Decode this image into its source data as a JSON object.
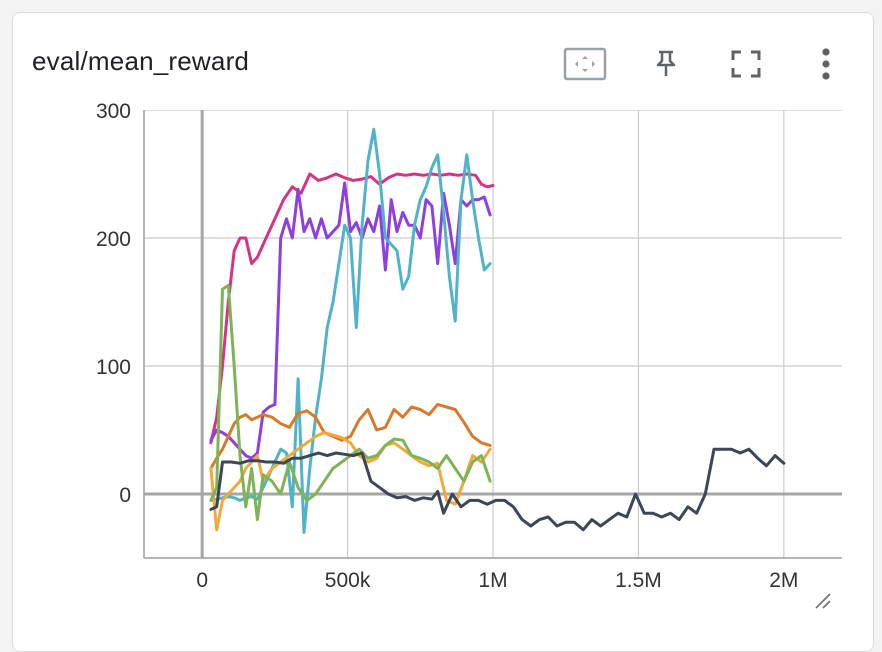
{
  "card": {
    "title": "eval/mean_reward",
    "toolbar": [
      {
        "name": "fit-domain-icon"
      },
      {
        "name": "pin-icon"
      },
      {
        "name": "fullscreen-icon"
      },
      {
        "name": "more-vert-icon"
      }
    ],
    "resize_icon": "resize-handle-icon"
  },
  "colors": {
    "axis": "#9e9e9e",
    "grid": "#cccccc",
    "tick_text": "#333333"
  },
  "chart_data": {
    "type": "line",
    "title": "eval/mean_reward",
    "xlabel": "",
    "ylabel": "",
    "xlim": [
      -200000,
      2200000
    ],
    "ylim": [
      -50,
      300
    ],
    "x_ticks": [
      {
        "value": 0,
        "label": "0"
      },
      {
        "value": 500000,
        "label": "500k"
      },
      {
        "value": 1000000,
        "label": "1M"
      },
      {
        "value": 1500000,
        "label": "1.5M"
      },
      {
        "value": 2000000,
        "label": "2M"
      }
    ],
    "y_ticks": [
      {
        "value": 0,
        "label": "0"
      },
      {
        "value": 100,
        "label": "100"
      },
      {
        "value": 200,
        "label": "200"
      },
      {
        "value": 300,
        "label": "300"
      }
    ],
    "grid": true,
    "series": [
      {
        "color": "#d63384",
        "x": [
          30000,
          50000,
          70000,
          90000,
          110000,
          130000,
          150000,
          170000,
          190000,
          220000,
          250000,
          280000,
          310000,
          340000,
          370000,
          400000,
          430000,
          460000,
          490000,
          520000,
          550000,
          580000,
          610000,
          640000,
          670000,
          700000,
          730000,
          760000,
          790000,
          820000,
          850000,
          880000,
          910000,
          940000,
          960000,
          980000,
          1000000
        ],
        "y": [
          40,
          60,
          100,
          150,
          190,
          200,
          200,
          180,
          185,
          200,
          215,
          230,
          240,
          235,
          250,
          245,
          247,
          250,
          247,
          245,
          246,
          248,
          242,
          247,
          250,
          249,
          250,
          249,
          250,
          249,
          250,
          249,
          250,
          249,
          242,
          240,
          241
        ]
      },
      {
        "color": "#8e3fe0",
        "x": [
          30000,
          50000,
          70000,
          90000,
          110000,
          130000,
          150000,
          170000,
          190000,
          210000,
          230000,
          250000,
          270000,
          290000,
          310000,
          330000,
          350000,
          370000,
          390000,
          410000,
          430000,
          450000,
          470000,
          490000,
          510000,
          530000,
          550000,
          570000,
          590000,
          610000,
          630000,
          650000,
          670000,
          690000,
          710000,
          730000,
          750000,
          770000,
          790000,
          810000,
          830000,
          850000,
          870000,
          890000,
          910000,
          930000,
          950000,
          970000,
          990000
        ],
        "y": [
          42,
          50,
          48,
          45,
          40,
          35,
          30,
          28,
          32,
          64,
          68,
          70,
          200,
          215,
          200,
          238,
          205,
          215,
          200,
          215,
          200,
          205,
          210,
          243,
          205,
          212,
          200,
          215,
          205,
          225,
          175,
          230,
          205,
          220,
          210,
          210,
          200,
          230,
          225,
          180,
          235,
          210,
          180,
          230,
          225,
          230,
          230,
          232,
          218
        ]
      },
      {
        "color": "#4fb3c9",
        "x": [
          30000,
          50000,
          70000,
          90000,
          110000,
          130000,
          150000,
          170000,
          190000,
          210000,
          230000,
          250000,
          270000,
          290000,
          310000,
          330000,
          350000,
          370000,
          390000,
          410000,
          430000,
          450000,
          470000,
          490000,
          510000,
          530000,
          550000,
          570000,
          590000,
          610000,
          630000,
          650000,
          670000,
          690000,
          710000,
          730000,
          750000,
          770000,
          790000,
          810000,
          830000,
          850000,
          870000,
          890000,
          910000,
          930000,
          950000,
          970000,
          990000
        ],
        "y": [
          -5,
          -4,
          -3,
          -2,
          -3,
          -5,
          -3,
          -2,
          -4,
          5,
          15,
          25,
          35,
          32,
          -10,
          90,
          -30,
          20,
          60,
          90,
          130,
          150,
          180,
          210,
          200,
          130,
          210,
          260,
          285,
          250,
          200,
          195,
          190,
          160,
          170,
          210,
          230,
          240,
          255,
          265,
          220,
          170,
          135,
          230,
          265,
          230,
          200,
          175,
          180
        ]
      },
      {
        "color": "#d97a2b",
        "x": [
          30000,
          50000,
          70000,
          90000,
          110000,
          130000,
          150000,
          170000,
          190000,
          210000,
          240000,
          270000,
          300000,
          330000,
          360000,
          390000,
          420000,
          450000,
          480000,
          510000,
          540000,
          570000,
          600000,
          630000,
          660000,
          690000,
          720000,
          750000,
          780000,
          810000,
          840000,
          870000,
          900000,
          930000,
          960000,
          990000
        ],
        "y": [
          20,
          28,
          35,
          45,
          55,
          60,
          62,
          58,
          60,
          62,
          60,
          55,
          52,
          63,
          65,
          60,
          48,
          45,
          42,
          45,
          58,
          66,
          50,
          52,
          66,
          60,
          68,
          66,
          62,
          70,
          68,
          66,
          56,
          45,
          40,
          38
        ]
      },
      {
        "color": "#f2a93b",
        "x": [
          30000,
          50000,
          70000,
          90000,
          110000,
          130000,
          150000,
          170000,
          190000,
          210000,
          240000,
          270000,
          300000,
          330000,
          360000,
          390000,
          420000,
          450000,
          480000,
          510000,
          540000,
          570000,
          600000,
          630000,
          660000,
          690000,
          720000,
          750000,
          780000,
          810000,
          840000,
          870000,
          900000,
          930000,
          960000,
          990000
        ],
        "y": [
          20,
          -28,
          -5,
          0,
          5,
          10,
          20,
          25,
          30,
          10,
          20,
          25,
          30,
          35,
          40,
          45,
          48,
          46,
          44,
          40,
          30,
          25,
          28,
          38,
          40,
          35,
          30,
          25,
          22,
          24,
          -5,
          -8,
          10,
          30,
          25,
          35
        ]
      },
      {
        "color": "#7eb356",
        "x": [
          30000,
          50000,
          70000,
          90000,
          110000,
          130000,
          150000,
          170000,
          190000,
          210000,
          240000,
          270000,
          300000,
          330000,
          360000,
          390000,
          420000,
          450000,
          480000,
          510000,
          540000,
          570000,
          600000,
          630000,
          660000,
          690000,
          720000,
          750000,
          780000,
          810000,
          840000,
          870000,
          900000,
          930000,
          960000,
          990000
        ],
        "y": [
          -5,
          5,
          160,
          163,
          100,
          30,
          -10,
          20,
          -20,
          15,
          10,
          0,
          25,
          5,
          -5,
          0,
          10,
          20,
          25,
          30,
          35,
          28,
          30,
          38,
          43,
          42,
          30,
          28,
          25,
          20,
          30,
          20,
          10,
          25,
          30,
          10
        ]
      },
      {
        "color": "#3d4656",
        "x": [
          30000,
          50000,
          70000,
          100000,
          130000,
          160000,
          190000,
          220000,
          250000,
          280000,
          310000,
          340000,
          370000,
          400000,
          430000,
          460000,
          490000,
          520000,
          550000,
          580000,
          610000,
          640000,
          670000,
          700000,
          730000,
          760000,
          790000,
          810000,
          830000,
          860000,
          890000,
          920000,
          950000,
          980000,
          1010000,
          1040000,
          1070000,
          1100000,
          1130000,
          1160000,
          1190000,
          1220000,
          1250000,
          1280000,
          1310000,
          1340000,
          1370000,
          1400000,
          1430000,
          1460000,
          1490000,
          1520000,
          1550000,
          1580000,
          1610000,
          1640000,
          1670000,
          1700000,
          1730000,
          1760000,
          1790000,
          1820000,
          1850000,
          1880000,
          1910000,
          1940000,
          1970000,
          2000000
        ],
        "y": [
          -12,
          -10,
          25,
          25,
          24,
          26,
          26,
          25,
          25,
          24,
          28,
          28,
          30,
          32,
          30,
          32,
          31,
          30,
          32,
          10,
          5,
          0,
          -3,
          -2,
          -5,
          -3,
          -4,
          2,
          -15,
          0,
          -10,
          -5,
          -5,
          -8,
          -5,
          -5,
          -10,
          -20,
          -25,
          -20,
          -18,
          -25,
          -22,
          -22,
          -28,
          -20,
          -25,
          -20,
          -15,
          -18,
          0,
          -15,
          -15,
          -18,
          -15,
          -20,
          -10,
          -15,
          0,
          35,
          35,
          35,
          32,
          35,
          28,
          22,
          30,
          24
        ]
      }
    ]
  }
}
